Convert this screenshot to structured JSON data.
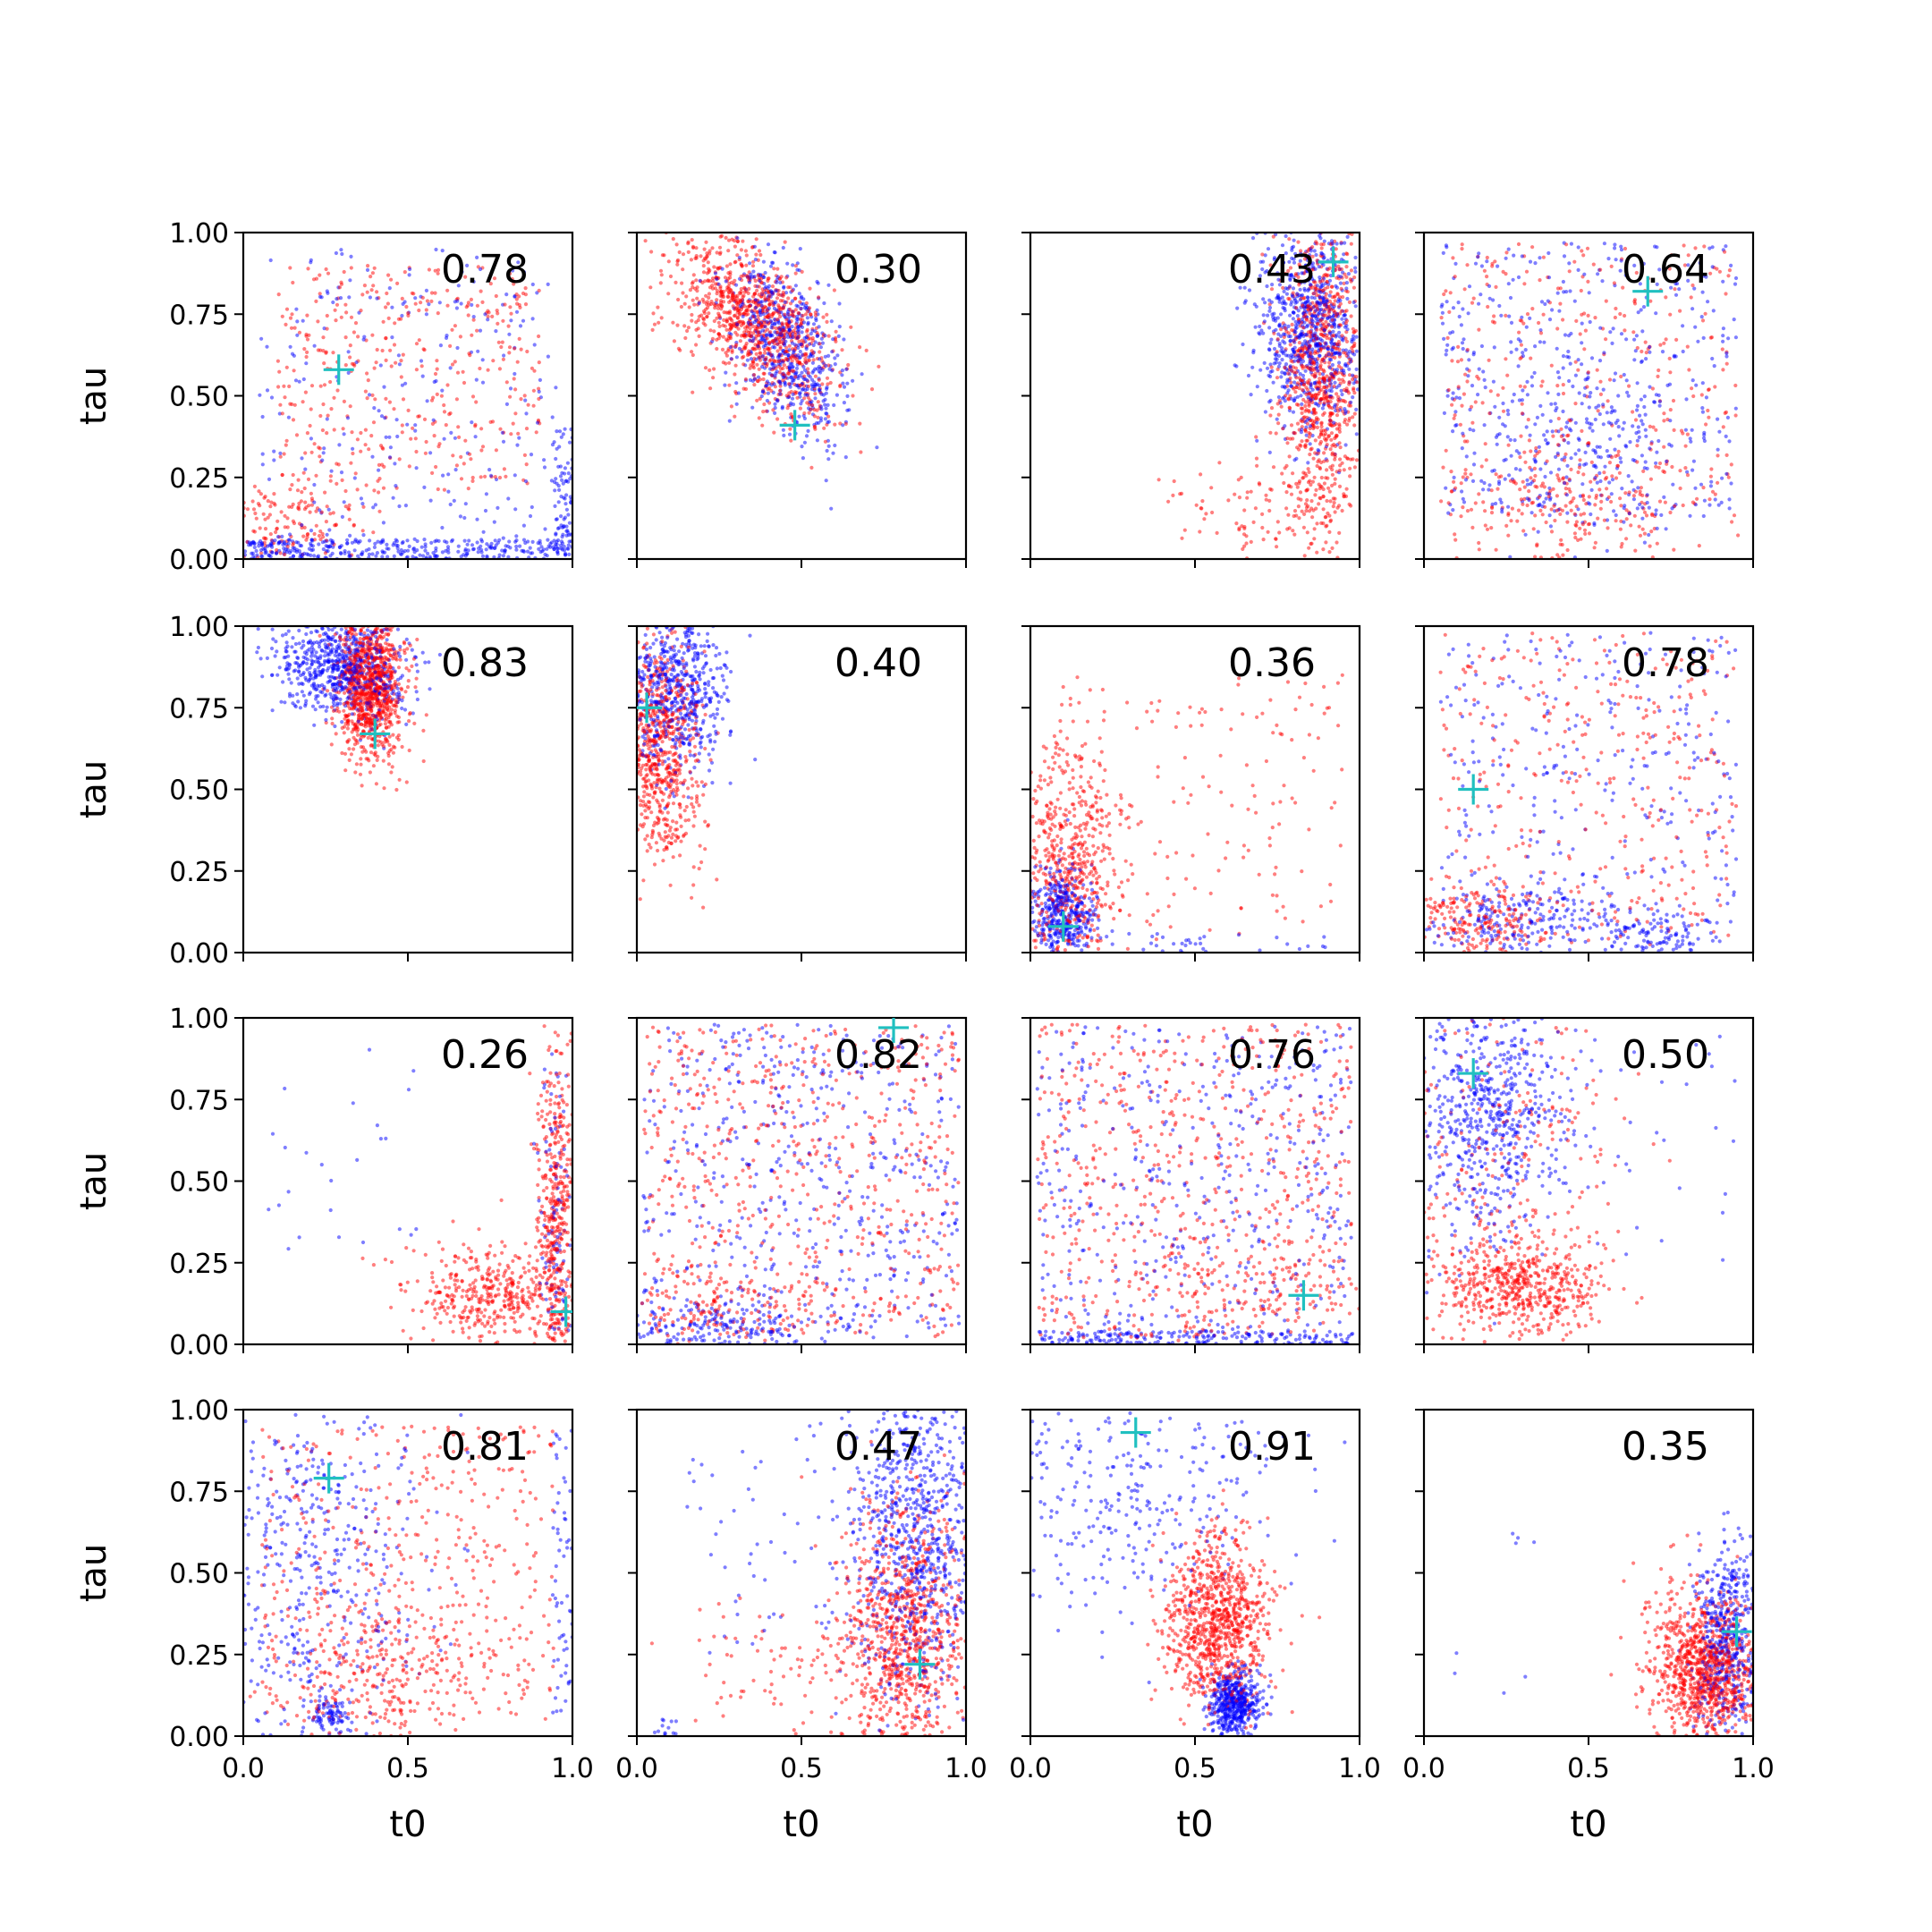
{
  "chart_data": {
    "type": "scatter",
    "grid": false,
    "legend": "none",
    "x_range": [
      0,
      1
    ],
    "y_range": [
      0,
      1
    ],
    "xlabel": "t0",
    "ylabel": "tau",
    "xticks": [
      "0.0",
      "0.5",
      "1.0"
    ],
    "yticks": [
      "0.00",
      "0.25",
      "0.50",
      "0.75",
      "1.00"
    ],
    "colors": {
      "red": "#ff0000",
      "blue": "#0000ff",
      "marker": "#20c0c0"
    },
    "panels": [
      {
        "label": "0.78",
        "marker": [
          0.29,
          0.58
        ],
        "red": [
          {
            "c": [
              0.5,
              0.55
            ],
            "s": [
              0.4,
              0.35
            ],
            "n": 400,
            "t": "u"
          },
          {
            "c": [
              0.15,
              0.12
            ],
            "s": [
              0.1,
              0.06
            ],
            "n": 150,
            "t": "g"
          }
        ],
        "blue": [
          {
            "c": [
              0.5,
              0.5
            ],
            "s": [
              0.45,
              0.45
            ],
            "n": 250,
            "t": "u"
          },
          {
            "c": [
              0.5,
              0.03
            ],
            "s": [
              0.5,
              0.03
            ],
            "n": 350,
            "t": "u"
          },
          {
            "c": [
              0.97,
              0.2
            ],
            "s": [
              0.03,
              0.2
            ],
            "n": 80,
            "t": "u"
          }
        ]
      },
      {
        "label": "0.30",
        "marker": [
          0.48,
          0.41
        ],
        "red": [
          {
            "c": [
              0.36,
              0.72
            ],
            "s": [
              0.1,
              0.14
            ],
            "n": 1000,
            "t": "g",
            "k": -0.5
          }
        ],
        "blue": [
          {
            "c": [
              0.45,
              0.65
            ],
            "s": [
              0.08,
              0.14
            ],
            "n": 600,
            "t": "g",
            "k": -0.3
          }
        ]
      },
      {
        "label": "0.43",
        "marker": [
          0.92,
          0.91
        ],
        "red": [
          {
            "c": [
              0.88,
              0.55
            ],
            "s": [
              0.06,
              0.24
            ],
            "n": 900,
            "t": "g"
          },
          {
            "c": [
              0.65,
              0.15
            ],
            "s": [
              0.12,
              0.07
            ],
            "n": 80,
            "t": "g"
          }
        ],
        "blue": [
          {
            "c": [
              0.85,
              0.7
            ],
            "s": [
              0.08,
              0.15
            ],
            "n": 800,
            "t": "g"
          }
        ]
      },
      {
        "label": "0.64",
        "marker": [
          0.68,
          0.82
        ],
        "red": [
          {
            "c": [
              0.5,
              0.55
            ],
            "s": [
              0.45,
              0.42
            ],
            "n": 350,
            "t": "u"
          },
          {
            "c": [
              0.45,
              0.15
            ],
            "s": [
              0.2,
              0.08
            ],
            "n": 200,
            "t": "g"
          }
        ],
        "blue": [
          {
            "c": [
              0.5,
              0.55
            ],
            "s": [
              0.45,
              0.42
            ],
            "n": 400,
            "t": "u"
          },
          {
            "c": [
              0.5,
              0.35
            ],
            "s": [
              0.15,
              0.15
            ],
            "n": 200,
            "t": "g"
          }
        ]
      },
      {
        "label": "0.83",
        "marker": [
          0.4,
          0.67
        ],
        "red": [
          {
            "c": [
              0.39,
              0.82
            ],
            "s": [
              0.05,
              0.11
            ],
            "n": 1000,
            "t": "g"
          }
        ],
        "blue": [
          {
            "c": [
              0.3,
              0.88
            ],
            "s": [
              0.1,
              0.08
            ],
            "n": 700,
            "t": "g",
            "k": -0.2
          }
        ]
      },
      {
        "label": "0.40",
        "marker": [
          0.03,
          0.75
        ],
        "red": [
          {
            "c": [
              0.07,
              0.62
            ],
            "s": [
              0.06,
              0.18
            ],
            "n": 700,
            "t": "g"
          }
        ],
        "blue": [
          {
            "c": [
              0.12,
              0.8
            ],
            "s": [
              0.08,
              0.12
            ],
            "n": 600,
            "t": "g"
          }
        ]
      },
      {
        "label": "0.36",
        "marker": [
          0.1,
          0.08
        ],
        "red": [
          {
            "c": [
              0.12,
              0.25
            ],
            "s": [
              0.08,
              0.2
            ],
            "n": 600,
            "t": "g"
          },
          {
            "c": [
              0.5,
              0.45
            ],
            "s": [
              0.45,
              0.4
            ],
            "n": 150,
            "t": "u"
          }
        ],
        "blue": [
          {
            "c": [
              0.1,
              0.12
            ],
            "s": [
              0.05,
              0.07
            ],
            "n": 400,
            "t": "g"
          },
          {
            "c": [
              0.5,
              0.03
            ],
            "s": [
              0.45,
              0.03
            ],
            "n": 40,
            "t": "u"
          }
        ]
      },
      {
        "label": "0.78",
        "marker": [
          0.15,
          0.5
        ],
        "red": [
          {
            "c": [
              0.5,
              0.5
            ],
            "s": [
              0.45,
              0.48
            ],
            "n": 350,
            "t": "u"
          },
          {
            "c": [
              0.15,
              0.1
            ],
            "s": [
              0.12,
              0.06
            ],
            "n": 200,
            "t": "g"
          }
        ],
        "blue": [
          {
            "c": [
              0.5,
              0.5
            ],
            "s": [
              0.45,
              0.48
            ],
            "n": 300,
            "t": "u"
          },
          {
            "c": [
              0.3,
              0.1
            ],
            "s": [
              0.15,
              0.06
            ],
            "n": 200,
            "t": "g"
          },
          {
            "c": [
              0.7,
              0.05
            ],
            "s": [
              0.1,
              0.04
            ],
            "n": 120,
            "t": "g"
          }
        ]
      },
      {
        "label": "0.26",
        "marker": [
          0.98,
          0.1
        ],
        "red": [
          {
            "c": [
              0.95,
              0.35
            ],
            "s": [
              0.03,
              0.3
            ],
            "n": 500,
            "t": "g"
          },
          {
            "c": [
              0.75,
              0.15
            ],
            "s": [
              0.12,
              0.07
            ],
            "n": 400,
            "t": "g"
          }
        ],
        "blue": [
          {
            "c": [
              0.95,
              0.3
            ],
            "s": [
              0.03,
              0.3
            ],
            "n": 120,
            "t": "g"
          },
          {
            "c": [
              0.3,
              0.6
            ],
            "s": [
              0.25,
              0.35
            ],
            "n": 25,
            "t": "u"
          }
        ]
      },
      {
        "label": "0.82",
        "marker": [
          0.78,
          0.97
        ],
        "red": [
          {
            "c": [
              0.5,
              0.5
            ],
            "s": [
              0.48,
              0.48
            ],
            "n": 600,
            "t": "u"
          },
          {
            "c": [
              0.25,
              0.1
            ],
            "s": [
              0.15,
              0.06
            ],
            "n": 120,
            "t": "g"
          }
        ],
        "blue": [
          {
            "c": [
              0.5,
              0.5
            ],
            "s": [
              0.48,
              0.48
            ],
            "n": 500,
            "t": "u"
          },
          {
            "c": [
              0.25,
              0.05
            ],
            "s": [
              0.2,
              0.04
            ],
            "n": 200,
            "t": "g"
          }
        ]
      },
      {
        "label": "0.76",
        "marker": [
          0.83,
          0.15
        ],
        "red": [
          {
            "c": [
              0.5,
              0.5
            ],
            "s": [
              0.48,
              0.48
            ],
            "n": 600,
            "t": "u"
          },
          {
            "c": [
              0.65,
              0.15
            ],
            "s": [
              0.2,
              0.08
            ],
            "n": 120,
            "t": "g"
          }
        ],
        "blue": [
          {
            "c": [
              0.5,
              0.5
            ],
            "s": [
              0.48,
              0.48
            ],
            "n": 450,
            "t": "u"
          },
          {
            "c": [
              0.5,
              0.02
            ],
            "s": [
              0.48,
              0.02
            ],
            "n": 200,
            "t": "u"
          }
        ]
      },
      {
        "label": "0.50",
        "marker": [
          0.15,
          0.83
        ],
        "red": [
          {
            "c": [
              0.3,
              0.18
            ],
            "s": [
              0.12,
              0.07
            ],
            "n": 500,
            "t": "g"
          },
          {
            "c": [
              0.25,
              0.5
            ],
            "s": [
              0.2,
              0.3
            ],
            "n": 300,
            "t": "g"
          }
        ],
        "blue": [
          {
            "c": [
              0.2,
              0.7
            ],
            "s": [
              0.12,
              0.18
            ],
            "n": 600,
            "t": "g"
          },
          {
            "c": [
              0.5,
              0.6
            ],
            "s": [
              0.45,
              0.35
            ],
            "n": 60,
            "t": "u"
          }
        ]
      },
      {
        "label": "0.81",
        "marker": [
          0.26,
          0.79
        ],
        "red": [
          {
            "c": [
              0.5,
              0.5
            ],
            "s": [
              0.45,
              0.45
            ],
            "n": 400,
            "t": "u"
          },
          {
            "c": [
              0.4,
              0.2
            ],
            "s": [
              0.2,
              0.12
            ],
            "n": 300,
            "t": "g"
          }
        ],
        "blue": [
          {
            "c": [
              0.2,
              0.55
            ],
            "s": [
              0.18,
              0.3
            ],
            "n": 500,
            "t": "g"
          },
          {
            "c": [
              0.26,
              0.06
            ],
            "s": [
              0.03,
              0.03
            ],
            "n": 80,
            "t": "g"
          },
          {
            "c": [
              0.97,
              0.5
            ],
            "s": [
              0.03,
              0.45
            ],
            "n": 60,
            "t": "u"
          }
        ]
      },
      {
        "label": "0.47",
        "marker": [
          0.86,
          0.22
        ],
        "red": [
          {
            "c": [
              0.82,
              0.3
            ],
            "s": [
              0.1,
              0.2
            ],
            "n": 900,
            "t": "g"
          },
          {
            "c": [
              0.5,
              0.2
            ],
            "s": [
              0.2,
              0.12
            ],
            "n": 100,
            "t": "g"
          }
        ],
        "blue": [
          {
            "c": [
              0.85,
              0.6
            ],
            "s": [
              0.1,
              0.25
            ],
            "n": 800,
            "t": "g"
          },
          {
            "c": [
              0.5,
              0.6
            ],
            "s": [
              0.35,
              0.35
            ],
            "n": 80,
            "t": "u"
          },
          {
            "c": [
              0.09,
              0.02
            ],
            "s": [
              0.02,
              0.02
            ],
            "n": 15,
            "t": "g"
          }
        ]
      },
      {
        "label": "0.91",
        "marker": [
          0.32,
          0.93
        ],
        "red": [
          {
            "c": [
              0.57,
              0.35
            ],
            "s": [
              0.08,
              0.13
            ],
            "n": 900,
            "t": "g"
          }
        ],
        "blue": [
          {
            "c": [
              0.62,
              0.1
            ],
            "s": [
              0.04,
              0.05
            ],
            "n": 500,
            "t": "g"
          },
          {
            "c": [
              0.3,
              0.75
            ],
            "s": [
              0.25,
              0.2
            ],
            "n": 350,
            "t": "g"
          }
        ]
      },
      {
        "label": "0.35",
        "marker": [
          0.95,
          0.32
        ],
        "red": [
          {
            "c": [
              0.85,
              0.2
            ],
            "s": [
              0.08,
              0.12
            ],
            "n": 1000,
            "t": "g"
          }
        ],
        "blue": [
          {
            "c": [
              0.92,
              0.3
            ],
            "s": [
              0.05,
              0.15
            ],
            "n": 500,
            "t": "g"
          },
          {
            "c": [
              0.2,
              0.4
            ],
            "s": [
              0.15,
              0.4
            ],
            "n": 8,
            "t": "u"
          }
        ]
      }
    ]
  }
}
